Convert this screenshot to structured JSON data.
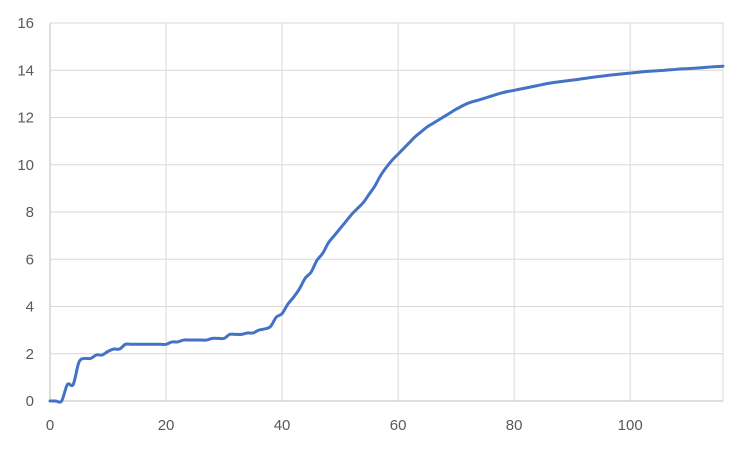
{
  "chart_data": {
    "type": "line",
    "title": "",
    "xlabel": "",
    "ylabel": "",
    "xlim": [
      0,
      116
    ],
    "ylim": [
      0,
      16
    ],
    "x_ticks": [
      "0",
      "20",
      "40",
      "60",
      "80",
      "100"
    ],
    "y_ticks": [
      "0",
      "2",
      "4",
      "6",
      "8",
      "10",
      "12",
      "14",
      "16"
    ],
    "grid": true,
    "legend": "none",
    "series": [
      {
        "color": "#4472c4",
        "x": [
          0,
          1,
          2,
          3,
          4,
          5,
          6,
          7,
          8,
          9,
          10,
          11,
          12,
          13,
          14,
          15,
          16,
          17,
          18,
          19,
          20,
          21,
          22,
          23,
          24,
          25,
          26,
          27,
          28,
          29,
          30,
          31,
          32,
          33,
          34,
          35,
          36,
          37,
          38,
          39,
          40,
          41,
          42,
          43,
          44,
          45,
          46,
          47,
          48,
          49,
          50,
          51,
          52,
          53,
          54,
          55,
          56,
          57,
          58,
          59,
          60,
          61,
          62,
          63,
          64,
          65,
          66,
          67,
          68,
          69,
          70,
          72,
          74,
          76,
          78,
          80,
          82,
          84,
          86,
          88,
          90,
          92,
          94,
          96,
          98,
          100,
          102,
          104,
          106,
          108,
          110,
          112,
          114,
          116
        ],
        "y": [
          0,
          0,
          0,
          0.7,
          0.7,
          1.65,
          1.8,
          1.8,
          1.95,
          1.95,
          2.1,
          2.2,
          2.2,
          2.4,
          2.4,
          2.4,
          2.4,
          2.4,
          2.4,
          2.4,
          2.4,
          2.5,
          2.5,
          2.58,
          2.58,
          2.58,
          2.58,
          2.58,
          2.65,
          2.65,
          2.65,
          2.82,
          2.82,
          2.82,
          2.88,
          2.88,
          3.0,
          3.05,
          3.15,
          3.55,
          3.7,
          4.1,
          4.4,
          4.75,
          5.2,
          5.45,
          5.95,
          6.25,
          6.7,
          7.0,
          7.3,
          7.6,
          7.9,
          8.15,
          8.4,
          8.75,
          9.1,
          9.55,
          9.9,
          10.2,
          10.45,
          10.7,
          10.95,
          11.2,
          11.4,
          11.6,
          11.75,
          11.9,
          12.05,
          12.2,
          12.35,
          12.6,
          12.75,
          12.9,
          13.05,
          13.15,
          13.25,
          13.35,
          13.45,
          13.52,
          13.58,
          13.65,
          13.72,
          13.78,
          13.83,
          13.88,
          13.93,
          13.97,
          14.0,
          14.04,
          14.07,
          14.1,
          14.14,
          14.17
        ]
      }
    ]
  }
}
